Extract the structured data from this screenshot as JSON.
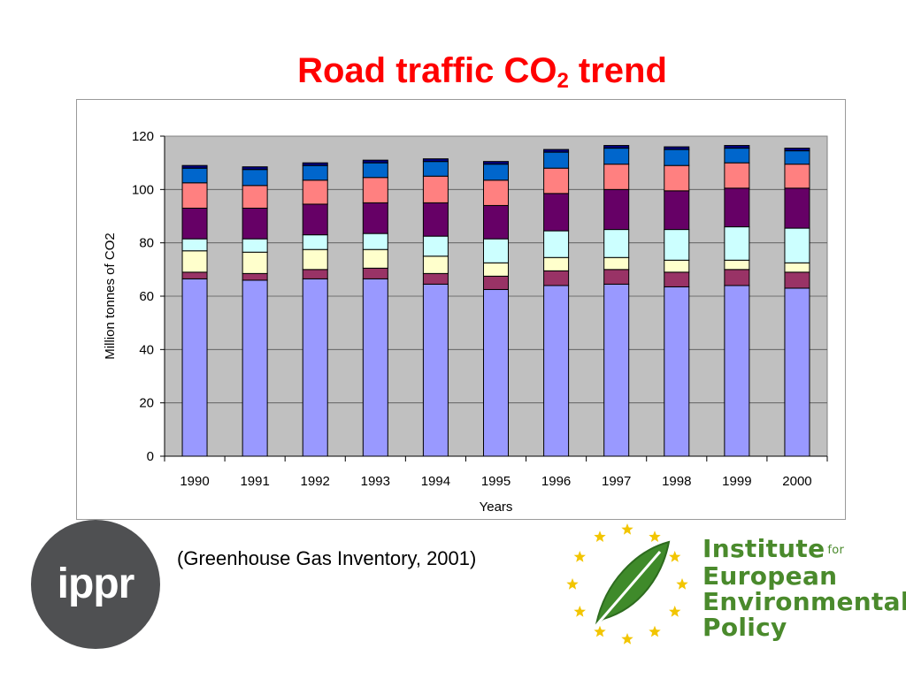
{
  "slide": {
    "title_main": "Road traffic CO",
    "title_sub": "2",
    "title_end": " trend",
    "caption": "(Greenhouse Gas Inventory, 2001)"
  },
  "logos": {
    "ippr": "ippr",
    "ieep_lines": [
      "Institute",
      "European",
      "Environmental",
      "Policy"
    ],
    "ieep_for": "for"
  },
  "chart_data": {
    "type": "bar",
    "stacked": true,
    "xlabel": "Years",
    "ylabel": "Million tonnes of CO2",
    "ylim": [
      0,
      120
    ],
    "yticks": [
      0,
      20,
      40,
      60,
      80,
      100,
      120
    ],
    "grid": true,
    "categories": [
      "1990",
      "1991",
      "1992",
      "1993",
      "1994",
      "1995",
      "1996",
      "1997",
      "1998",
      "1999",
      "2000"
    ],
    "series": [
      {
        "color": "#9999ff",
        "values": [
          66.5,
          66,
          66.5,
          66.5,
          64.5,
          62.5,
          64,
          64.5,
          63.5,
          64,
          63
        ]
      },
      {
        "color": "#993366",
        "values": [
          2.5,
          2.5,
          3.5,
          4,
          4,
          5,
          5.5,
          5.5,
          5.5,
          6,
          6
        ]
      },
      {
        "color": "#ffffcc",
        "values": [
          8,
          8,
          7.5,
          7,
          6.5,
          5,
          5,
          4.5,
          4.5,
          3.5,
          3.5
        ]
      },
      {
        "color": "#ccffff",
        "values": [
          4.5,
          5,
          5.5,
          6,
          7.5,
          9,
          10,
          10.5,
          11.5,
          12.5,
          13
        ]
      },
      {
        "color": "#660066",
        "values": [
          11.5,
          11.5,
          11.5,
          11.5,
          12.5,
          12.5,
          14,
          15,
          14.5,
          14.5,
          15
        ]
      },
      {
        "color": "#ff8080",
        "values": [
          9.5,
          8.5,
          9,
          9.5,
          10,
          9.5,
          9.5,
          9.5,
          9.5,
          9.5,
          9
        ]
      },
      {
        "color": "#0066cc",
        "values": [
          5.5,
          6,
          5.5,
          5.5,
          5.5,
          6,
          6,
          6,
          6,
          5.5,
          5
        ]
      },
      {
        "color": "#000080",
        "values": [
          1,
          1,
          1,
          1,
          1,
          1,
          1,
          1,
          1,
          1,
          1
        ]
      }
    ]
  }
}
